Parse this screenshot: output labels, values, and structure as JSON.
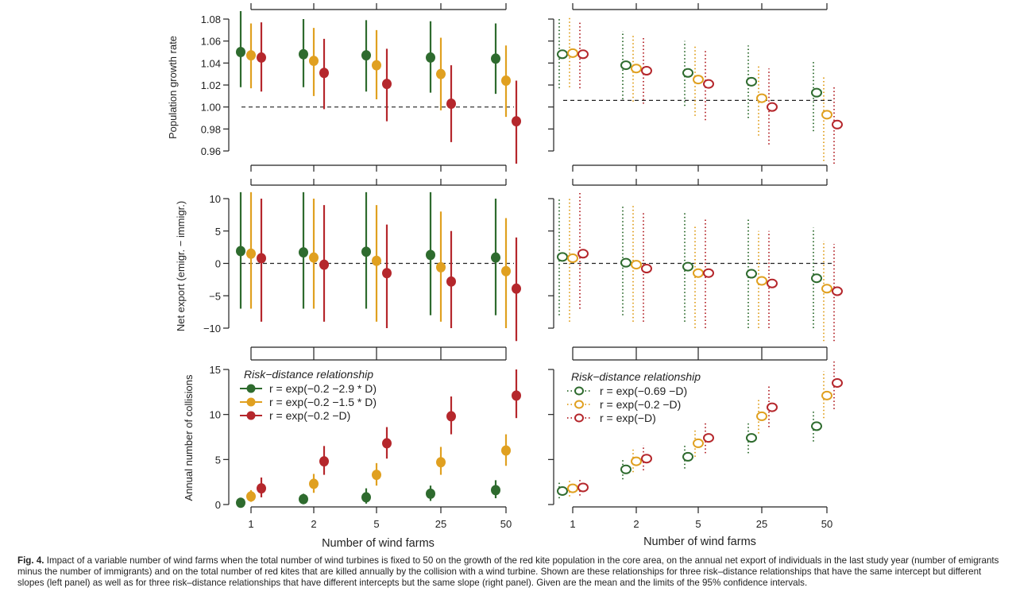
{
  "colors": {
    "green": "#2e6b2e",
    "orange": "#e0a020",
    "red": "#b5272c",
    "axis": "#222222"
  },
  "chart_data": {
    "type": "scatter",
    "description_note": "",
    "x_categories": [
      "1",
      "2",
      "5",
      "25",
      "50"
    ],
    "xlabel": "Number of wind farms",
    "panels": [
      {
        "row": "growth",
        "side": "left",
        "ylabel": "Population growth rate",
        "yticks": [
          "0.96",
          "0.98",
          "1.00",
          "1.02",
          "1.04",
          "1.06",
          "1.08"
        ],
        "ylim": [
          0.955,
          1.085
        ],
        "reference_line": 1.0,
        "series": [
          {
            "color": "green",
            "mean": [
              1.05,
              1.048,
              1.047,
              1.045,
              1.044
            ],
            "lo": [
              1.018,
              1.018,
              1.014,
              1.013,
              1.012
            ],
            "hi": [
              1.09,
              1.08,
              1.079,
              1.078,
              1.076
            ]
          },
          {
            "color": "orange",
            "mean": [
              1.047,
              1.042,
              1.038,
              1.03,
              1.024
            ],
            "lo": [
              1.017,
              1.01,
              1.007,
              0.997,
              0.991
            ],
            "hi": [
              1.076,
              1.072,
              1.07,
              1.063,
              1.056
            ]
          },
          {
            "color": "red",
            "mean": [
              1.045,
              1.031,
              1.021,
              1.003,
              0.987
            ],
            "lo": [
              1.014,
              0.998,
              0.987,
              0.968,
              0.942
            ],
            "hi": [
              1.077,
              1.062,
              1.053,
              1.038,
              1.024
            ]
          }
        ]
      },
      {
        "row": "growth",
        "side": "right",
        "ylim": [
          0.955,
          1.085
        ],
        "reference_line": 1.006,
        "series": [
          {
            "color": "green",
            "mean": [
              1.048,
              1.038,
              1.031,
              1.023,
              1.013
            ],
            "lo": [
              1.017,
              1.007,
              1.001,
              0.99,
              0.978
            ],
            "hi": [
              1.08,
              1.069,
              1.06,
              1.056,
              1.042
            ]
          },
          {
            "color": "orange",
            "mean": [
              1.049,
              1.035,
              1.025,
              1.008,
              0.993
            ],
            "lo": [
              1.018,
              1.005,
              0.992,
              0.974,
              0.951
            ],
            "hi": [
              1.081,
              1.066,
              1.057,
              1.038,
              1.027
            ]
          },
          {
            "color": "red",
            "mean": [
              1.048,
              1.033,
              1.021,
              1.0,
              0.984
            ],
            "lo": [
              1.017,
              1.003,
              0.988,
              0.966,
              0.945
            ],
            "hi": [
              1.078,
              1.063,
              1.053,
              1.035,
              1.02
            ]
          }
        ]
      },
      {
        "row": "export",
        "side": "left",
        "ylabel": "Net export (emigr. − immigr.)",
        "yticks": [
          "−10",
          "−5",
          "0",
          "5",
          "10"
        ],
        "ylim": [
          -12,
          11
        ],
        "reference_line": 0,
        "series": [
          {
            "color": "green",
            "mean": [
              1.9,
              1.7,
              1.8,
              1.3,
              0.9
            ],
            "lo": [
              -7.0,
              -7.0,
              -7.0,
              -8.0,
              -8.0
            ],
            "hi": [
              11.0,
              11.0,
              11.0,
              11.0,
              10.0
            ]
          },
          {
            "color": "orange",
            "mean": [
              1.5,
              0.9,
              0.4,
              -0.6,
              -1.2
            ],
            "lo": [
              -7.0,
              -7.0,
              -9.0,
              -9.0,
              -10.0
            ],
            "hi": [
              11.0,
              10.0,
              9.0,
              8.0,
              7.0
            ]
          },
          {
            "color": "red",
            "mean": [
              0.8,
              -0.2,
              -1.5,
              -2.8,
              -3.9
            ],
            "lo": [
              -9.0,
              -9.0,
              -10.0,
              -10.0,
              -12.0
            ],
            "hi": [
              10.0,
              9.0,
              6.0,
              5.0,
              4.0
            ]
          }
        ]
      },
      {
        "row": "export",
        "side": "right",
        "ylim": [
          -12,
          11
        ],
        "reference_line": 0,
        "series": [
          {
            "color": "green",
            "mean": [
              1.0,
              0.1,
              -0.5,
              -1.6,
              -2.3
            ],
            "lo": [
              -8.0,
              -8.0,
              -9.0,
              -10.0,
              -10.0
            ],
            "hi": [
              10.0,
              9.0,
              8.0,
              7.0,
              5.5
            ]
          },
          {
            "color": "orange",
            "mean": [
              0.8,
              -0.2,
              -1.5,
              -2.7,
              -3.9
            ],
            "lo": [
              -9.0,
              -9.0,
              -10.0,
              -10.0,
              -12.0
            ],
            "hi": [
              10.0,
              9.0,
              6.0,
              5.0,
              3.5
            ]
          },
          {
            "color": "red",
            "mean": [
              1.5,
              -0.8,
              -1.5,
              -3.1,
              -4.3
            ],
            "lo": [
              -7.0,
              -9.0,
              -10.0,
              -10.0,
              -12.0
            ],
            "hi": [
              11.0,
              8.0,
              7.0,
              5.0,
              3.0
            ]
          }
        ]
      },
      {
        "row": "collisions",
        "side": "left",
        "ylabel": "Annual number of collisions",
        "yticks": [
          "0",
          "5",
          "10",
          "15"
        ],
        "ylim": [
          0,
          15.5
        ],
        "series": [
          {
            "color": "green",
            "mean": [
              0.2,
              0.6,
              0.8,
              1.2,
              1.6
            ],
            "lo": [
              0.0,
              0.1,
              0.1,
              0.4,
              0.7
            ],
            "hi": [
              0.6,
              1.2,
              1.8,
              2.1,
              2.7
            ]
          },
          {
            "color": "orange",
            "mean": [
              0.9,
              2.3,
              3.3,
              4.7,
              6.0
            ],
            "lo": [
              0.3,
              1.3,
              2.1,
              3.3,
              4.3
            ],
            "hi": [
              1.6,
              3.4,
              4.6,
              6.4,
              7.8
            ]
          },
          {
            "color": "red",
            "mean": [
              1.8,
              4.8,
              6.8,
              9.8,
              12.1
            ],
            "lo": [
              0.8,
              3.3,
              5.1,
              7.8,
              9.6
            ],
            "hi": [
              3.0,
              6.5,
              8.6,
              12.0,
              15.0
            ]
          }
        ]
      },
      {
        "row": "collisions",
        "side": "right",
        "ylim": [
          0,
          15.5
        ],
        "series": [
          {
            "color": "green",
            "mean": [
              1.5,
              3.9,
              5.3,
              7.4,
              8.7
            ],
            "lo": [
              0.7,
              2.8,
              4.0,
              5.7,
              7.0
            ],
            "hi": [
              2.5,
              5.0,
              6.6,
              9.0,
              10.5
            ]
          },
          {
            "color": "orange",
            "mean": [
              1.8,
              4.8,
              6.8,
              9.8,
              12.1
            ],
            "lo": [
              0.9,
              3.6,
              5.3,
              7.9,
              9.6
            ],
            "hi": [
              2.8,
              6.1,
              8.4,
              11.6,
              14.8
            ]
          },
          {
            "color": "red",
            "mean": [
              1.9,
              5.1,
              7.4,
              10.8,
              13.5
            ],
            "lo": [
              1.0,
              3.8,
              5.7,
              8.6,
              10.6
            ],
            "hi": [
              2.9,
              6.6,
              9.1,
              13.2,
              16.3
            ]
          }
        ]
      }
    ],
    "legend_left": {
      "title": "Risk−distance relationship",
      "entries": [
        "r = exp(−0.2 −2.9 * D)",
        "r = exp(−0.2 −1.5 * D)",
        "r = exp(−0.2 −D)"
      ]
    },
    "legend_right": {
      "title": "Risk−distance relationship",
      "entries": [
        "r = exp(−0.69 −D)",
        "r = exp(−0.2 −D)",
        "r = exp(−D)"
      ]
    }
  },
  "caption": {
    "label": "Fig. 4.",
    "text": "Impact of a variable number of wind farms when the total number of wind turbines is fixed to 50 on the growth of the red kite population in the core area, on the annual net export of individuals in the last study year (number of emigrants minus the number of immigrants) and on the total number of red kites that are killed annually by the collision with a wind turbine. Shown are these relationships for three risk–distance relationships that have the same intercept but different slopes (left panel) as well as for three risk–distance relationships that have different intercepts but the same slope (right panel). Given are the mean and the limits of the 95% confidence intervals."
  }
}
